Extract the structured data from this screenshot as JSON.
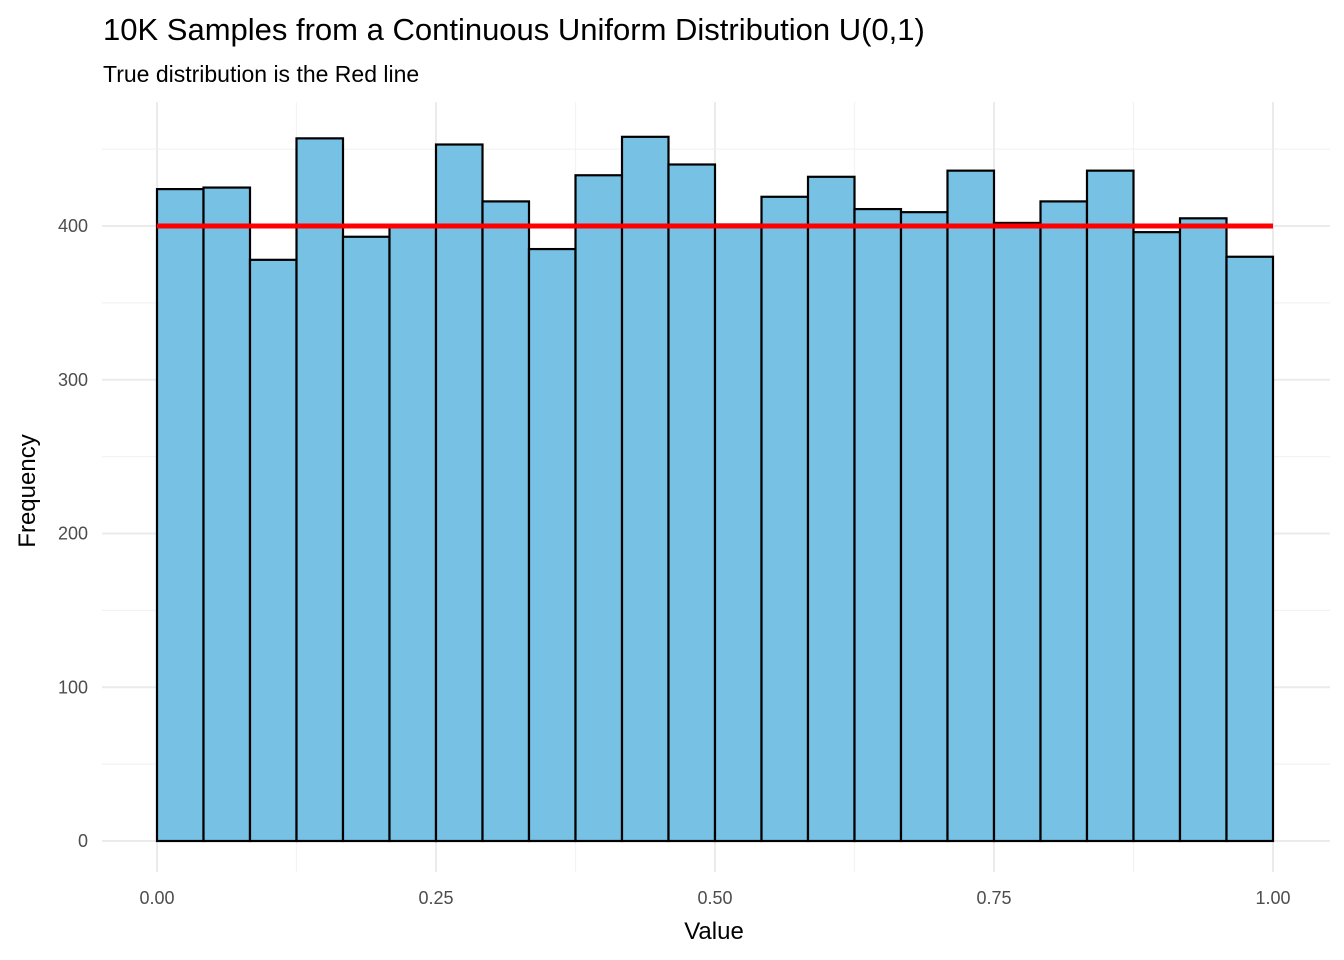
{
  "chart_data": {
    "type": "bar",
    "title": "10K Samples from a Continuous Uniform Distribution U(0,1)",
    "subtitle": "True distribution is the Red line",
    "xlabel": "Value",
    "ylabel": "Frequency",
    "xlim": [
      0,
      1
    ],
    "ylim": [
      0,
      460
    ],
    "x_ticks": [
      0,
      0.25,
      0.5,
      0.75,
      1
    ],
    "x_tick_labels": [
      "0.00",
      "0.25",
      "0.50",
      "0.75",
      "1.00"
    ],
    "y_ticks": [
      0,
      100,
      200,
      300,
      400
    ],
    "y_tick_labels": [
      "0",
      "100",
      "200",
      "300",
      "400"
    ],
    "grid": true,
    "bin_width": 0.04167,
    "bin_edges": [
      0,
      0.04167,
      0.08333,
      0.125,
      0.16667,
      0.20833,
      0.25,
      0.29167,
      0.33333,
      0.375,
      0.41667,
      0.45833,
      0.5,
      0.54167,
      0.58333,
      0.625,
      0.66667,
      0.70833,
      0.75,
      0.79167,
      0.83333,
      0.875,
      0.91667,
      0.95833,
      1
    ],
    "values": [
      424,
      425,
      378,
      457,
      393,
      400,
      453,
      416,
      385,
      433,
      458,
      440,
      401,
      419,
      432,
      411,
      409,
      436,
      402,
      416,
      436,
      396,
      405,
      380
    ],
    "bar_fill": "#76c1e4",
    "bar_outline": "#000000",
    "reference_line": {
      "y": 400,
      "x_start": 0,
      "x_end": 1,
      "color": "#ff0000"
    }
  }
}
